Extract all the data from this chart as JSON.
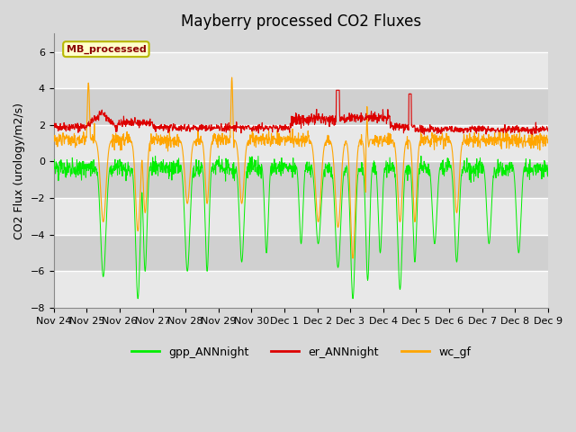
{
  "title": "Mayberry processed CO2 Fluxes",
  "ylabel": "CO2 Flux (urology/m2/s)",
  "ylim": [
    -8,
    7
  ],
  "yticks": [
    -8,
    -6,
    -4,
    -2,
    0,
    2,
    4,
    6
  ],
  "background_color": "#d8d8d8",
  "plot_bg_color": "#d8d8d8",
  "grid_color": "#ffffff",
  "legend_label": "MB_processed",
  "legend_text_color": "#8b0000",
  "legend_box_color": "#ffffcc",
  "legend_box_edge": "#b8b800",
  "line_colors": {
    "gpp": "#00ee00",
    "er": "#dd0000",
    "wc": "#ffa500"
  },
  "series_labels": [
    "gpp_ANNnight",
    "er_ANNnight",
    "wc_gf"
  ],
  "x_tick_labels": [
    "Nov 24",
    "Nov 25",
    "Nov 26",
    "Nov 27",
    "Nov 28",
    "Nov 29",
    "Nov 30",
    "Dec 1",
    "Dec 2",
    "Dec 3",
    "Dec 4",
    "Dec 5",
    "Dec 6",
    "Dec 7",
    "Dec 8",
    "Dec 9"
  ],
  "title_fontsize": 12,
  "axis_fontsize": 9,
  "tick_fontsize": 8
}
